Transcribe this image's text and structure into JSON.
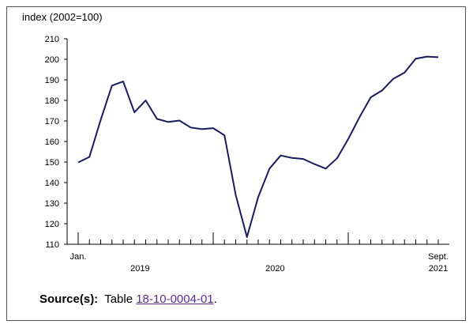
{
  "chart_data": {
    "type": "line",
    "title": "",
    "ylabel": "index (2002=100)",
    "xlabel": "",
    "ylim": [
      110,
      210
    ],
    "yticks": [
      110,
      120,
      130,
      140,
      150,
      160,
      170,
      180,
      190,
      200,
      210
    ],
    "grid": false,
    "line_color": "#1a1a5e",
    "x_start_label": "Jan.",
    "x_end_label": "Sept.",
    "year_labels": [
      "2019",
      "2020",
      "2021"
    ],
    "series": [
      {
        "x": [
          "2019-01",
          "2019-02",
          "2019-03",
          "2019-04",
          "2019-05",
          "2019-06",
          "2019-07",
          "2019-08",
          "2019-09",
          "2019-10",
          "2019-11",
          "2019-12",
          "2020-01",
          "2020-02",
          "2020-03",
          "2020-04",
          "2020-05",
          "2020-06",
          "2020-07",
          "2020-08",
          "2020-09",
          "2020-10",
          "2020-11",
          "2020-12",
          "2021-01",
          "2021-02",
          "2021-03",
          "2021-04",
          "2021-05",
          "2021-06",
          "2021-07",
          "2021-08",
          "2021-09"
        ],
        "values": [
          149.8,
          152.5,
          170.5,
          187.2,
          189.2,
          174.2,
          180.0,
          171.0,
          169.5,
          170.2,
          166.8,
          166.0,
          166.5,
          163.0,
          134.0,
          113.5,
          133.0,
          146.8,
          153.2,
          152.0,
          151.5,
          149.0,
          146.8,
          151.8,
          161.2,
          171.8,
          181.5,
          184.8,
          190.5,
          193.5,
          200.3,
          201.3,
          201.0
        ]
      }
    ]
  },
  "source": {
    "label": "Source(s):",
    "text": "Table",
    "link": "18-10-0004-01",
    "suffix": "."
  }
}
